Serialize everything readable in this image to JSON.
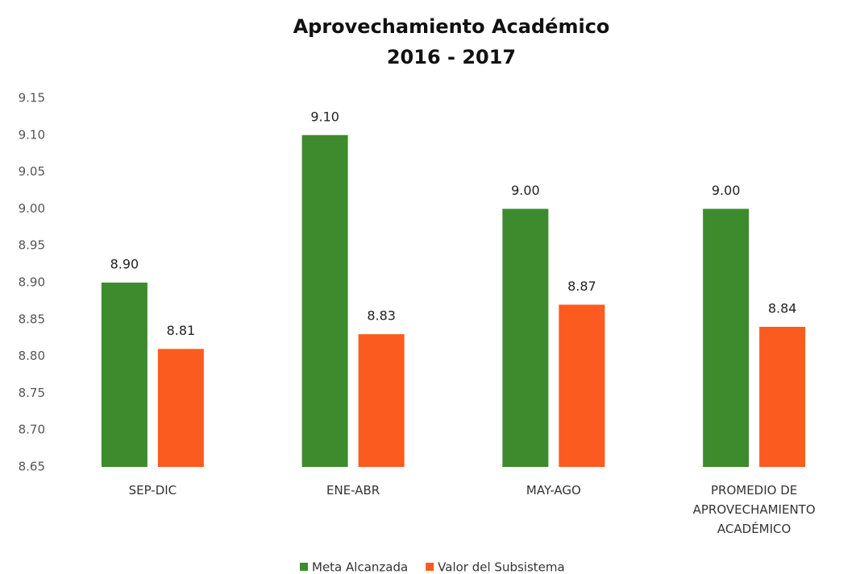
{
  "chart_data": {
    "type": "bar",
    "title": "Aprovechamiento Académico",
    "subtitle": "2016 - 2017",
    "categories": [
      "SEP-DIC",
      "ENE-ABR",
      "MAY-AGO",
      "PROMEDIO DE APROVECHAMIENTO ACADÉMICO"
    ],
    "series": [
      {
        "name": "Meta Alcanzada",
        "color": "#3d8b2c",
        "values": [
          8.9,
          9.1,
          9.0,
          9.0
        ],
        "value_labels": [
          "8.90",
          "9.10",
          "9.00",
          "9.00"
        ]
      },
      {
        "name": "Valor del Subsistema",
        "color": "#fb5b1e",
        "values": [
          8.81,
          8.83,
          8.87,
          8.84
        ],
        "value_labels": [
          "8.81",
          "8.83",
          "8.87",
          "8.84"
        ]
      }
    ],
    "ylim": [
      8.65,
      9.15
    ],
    "yticks": [
      8.65,
      {
        "value": 8.7,
        "label": "8.70"
      },
      8.75,
      {
        "value": 8.8,
        "label": "8.80"
      },
      8.85,
      {
        "value": 8.9,
        "label": "8.90"
      },
      8.95,
      {
        "value": 9.0,
        "label": "9.00"
      },
      9.05,
      {
        "value": 9.1,
        "label": "9.10"
      },
      9.15
    ],
    "grid": false,
    "legend": "bottom"
  }
}
